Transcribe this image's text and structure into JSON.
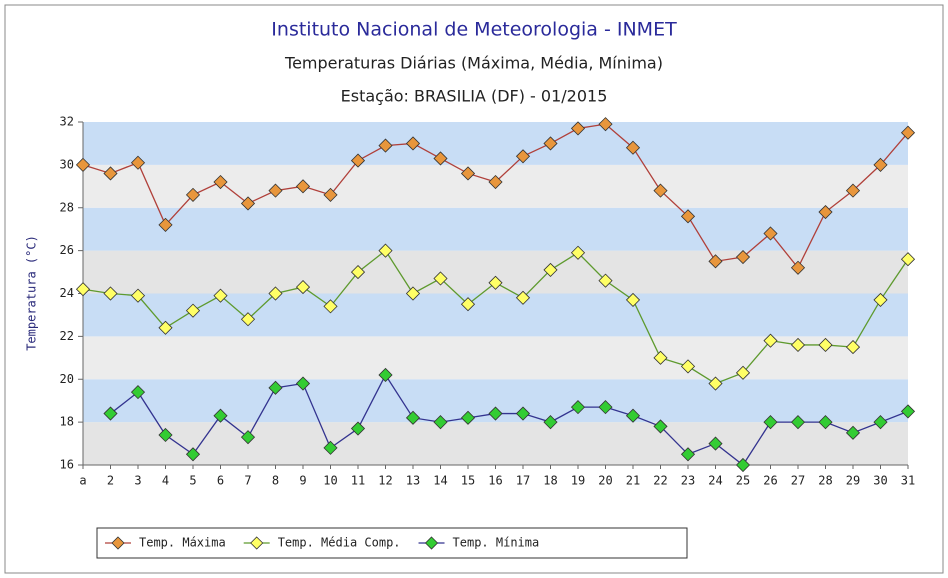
{
  "chart_data": {
    "type": "line",
    "title": "Instituto Nacional de Meteorologia - INMET",
    "subtitle": "Temperaturas Diárias (Máxima, Média, Mínima)",
    "station": "Estação: BRASILIA (DF)  -  01/2015",
    "ylabel": "Temperatura (°C)",
    "categories": [
      "a",
      "2",
      "3",
      "4",
      "5",
      "6",
      "7",
      "8",
      "9",
      "10",
      "11",
      "12",
      "13",
      "14",
      "15",
      "16",
      "17",
      "18",
      "19",
      "20",
      "21",
      "22",
      "23",
      "24",
      "25",
      "26",
      "27",
      "28",
      "29",
      "30",
      "31"
    ],
    "series": [
      {
        "name": "Temp. Máxima",
        "color": "#e8963c",
        "line_color": "#b0403a",
        "values": [
          30.0,
          29.6,
          30.1,
          27.2,
          28.6,
          29.2,
          28.2,
          28.8,
          29.0,
          28.6,
          30.2,
          30.9,
          31.0,
          30.3,
          29.6,
          29.2,
          30.4,
          31.0,
          31.7,
          31.9,
          30.8,
          28.8,
          27.6,
          25.5,
          25.7,
          26.8,
          25.2,
          27.8,
          28.8,
          30.0,
          31.5
        ]
      },
      {
        "name": "Temp. Média Comp.",
        "color": "#ffff66",
        "line_color": "#5e9a2e",
        "values": [
          24.2,
          24.0,
          23.9,
          22.4,
          23.2,
          23.9,
          22.8,
          24.0,
          24.3,
          23.4,
          25.0,
          26.0,
          24.0,
          24.7,
          23.5,
          24.5,
          23.8,
          25.1,
          25.9,
          24.6,
          23.7,
          21.0,
          20.6,
          19.8,
          20.3,
          21.8,
          21.6,
          21.6,
          21.5,
          23.7,
          25.6
        ]
      },
      {
        "name": "Temp. Mínima",
        "color": "#33cc33",
        "line_color": "#33338f",
        "values": [
          null,
          18.4,
          19.4,
          17.4,
          16.5,
          18.3,
          17.3,
          19.6,
          19.8,
          16.8,
          17.7,
          20.2,
          18.2,
          18.0,
          18.2,
          18.4,
          18.4,
          18.0,
          18.7,
          18.7,
          18.3,
          17.8,
          16.5,
          17.0,
          16.0,
          18.0,
          18.0,
          18.0,
          17.5,
          18.0,
          18.5
        ]
      }
    ],
    "ylim": [
      16,
      32
    ],
    "yticks": [
      16,
      18,
      20,
      22,
      24,
      26,
      28,
      30,
      32
    ],
    "band_colors": [
      "#e4e4e4",
      "#c8ddf5",
      "#ececec",
      "#c8ddf5"
    ],
    "legend": "bottom"
  }
}
